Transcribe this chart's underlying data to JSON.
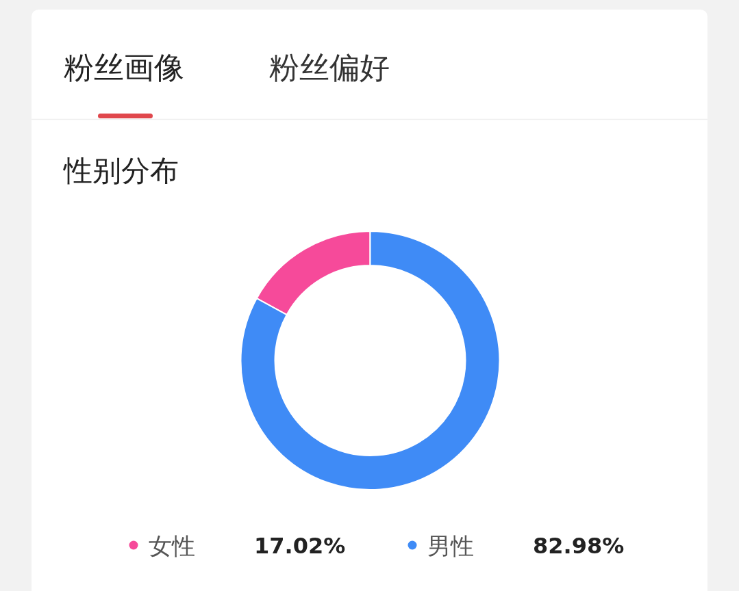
{
  "chart_data": {
    "type": "donut",
    "title": "性别分布",
    "annotations": [
      "粉丝画像",
      "粉丝偏好"
    ],
    "categories": [
      "女性",
      "男性"
    ],
    "values": [
      17.02,
      82.98
    ],
    "colors": [
      "#f64a9a",
      "#3f8bf6"
    ],
    "value_labels": [
      "17.02%",
      "82.98%"
    ],
    "legend": "bottom"
  }
}
